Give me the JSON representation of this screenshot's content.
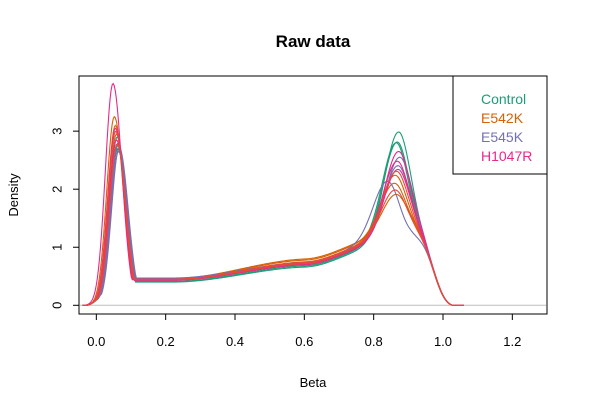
{
  "chart_data": {
    "type": "line",
    "title": "Raw data",
    "xlabel": "Beta",
    "ylabel": "Density",
    "xlim": [
      -0.05,
      1.3
    ],
    "ylim": [
      -0.15,
      3.95
    ],
    "x_ticks": [
      0.0,
      0.2,
      0.4,
      0.6,
      0.8,
      1.0,
      1.2
    ],
    "x_tick_labels": [
      "0.0",
      "0.2",
      "0.4",
      "0.6",
      "0.8",
      "1.0",
      "1.2"
    ],
    "y_ticks": [
      0,
      1,
      2,
      3
    ],
    "y_tick_labels": [
      "0",
      "1",
      "2",
      "3"
    ],
    "baseline": {
      "y": 0,
      "color": "#bebebe"
    },
    "legend": {
      "position": "top-right",
      "entries": [
        {
          "label": "Control",
          "color": "#1b9e77"
        },
        {
          "label": "E542K",
          "color": "#d95f02"
        },
        {
          "label": "E545K",
          "color": "#7570b3"
        },
        {
          "label": "H1047R",
          "color": "#e7298a"
        }
      ]
    },
    "series": [
      {
        "color": "#1b9e77",
        "peak1_x": 0.062,
        "peak1_y": 2.7,
        "trough_y": 0.4,
        "mid_y": 0.66,
        "peak2_x": 0.872,
        "peak2_y": 2.58
      },
      {
        "color": "#1b9e77",
        "peak1_x": 0.062,
        "peak1_y": 2.75,
        "trough_y": 0.41,
        "mid_y": 0.68,
        "peak2_x": 0.868,
        "peak2_y": 2.4
      },
      {
        "color": "#1b9e77",
        "peak1_x": 0.06,
        "peak1_y": 2.9,
        "trough_y": 0.43,
        "mid_y": 0.7,
        "peak2_x": 0.865,
        "peak2_y": 2.38
      },
      {
        "color": "#d95f02",
        "peak1_x": 0.052,
        "peak1_y": 3.25,
        "trough_y": 0.46,
        "mid_y": 0.8,
        "peak2_x": 0.865,
        "peak2_y": 1.45
      },
      {
        "color": "#d95f02",
        "peak1_x": 0.055,
        "peak1_y": 3.1,
        "trough_y": 0.45,
        "mid_y": 0.78,
        "peak2_x": 0.86,
        "peak2_y": 1.65
      },
      {
        "color": "#d95f02",
        "peak1_x": 0.058,
        "peak1_y": 2.95,
        "trough_y": 0.44,
        "mid_y": 0.75,
        "peak2_x": 0.862,
        "peak2_y": 1.8
      },
      {
        "color": "#7570b3",
        "peak1_x": 0.064,
        "peak1_y": 2.65,
        "trough_y": 0.47,
        "mid_y": 0.74,
        "peak2_x": 0.84,
        "peak2_y": 1.7
      },
      {
        "color": "#7570b3",
        "peak1_x": 0.066,
        "peak1_y": 2.72,
        "trough_y": 0.46,
        "mid_y": 0.72,
        "peak2_x": 0.875,
        "peak2_y": 2.12
      },
      {
        "color": "#7570b3",
        "peak1_x": 0.063,
        "peak1_y": 2.8,
        "trough_y": 0.45,
        "mid_y": 0.71,
        "peak2_x": 0.87,
        "peak2_y": 1.98
      },
      {
        "color": "#e7298a",
        "peak1_x": 0.048,
        "peak1_y": 3.82,
        "trough_y": 0.44,
        "mid_y": 0.72,
        "peak2_x": 0.872,
        "peak2_y": 2.22
      },
      {
        "color": "#e7298a",
        "peak1_x": 0.055,
        "peak1_y": 3.05,
        "trough_y": 0.45,
        "mid_y": 0.73,
        "peak2_x": 0.868,
        "peak2_y": 2.05
      },
      {
        "color": "#e7298a",
        "peak1_x": 0.058,
        "peak1_y": 2.85,
        "trough_y": 0.43,
        "mid_y": 0.7,
        "peak2_x": 0.87,
        "peak2_y": 1.92
      },
      {
        "color": "#e64a3c",
        "peak1_x": 0.056,
        "peak1_y": 3.0,
        "trough_y": 0.45,
        "mid_y": 0.74,
        "peak2_x": 0.862,
        "peak2_y": 1.55
      },
      {
        "color": "#e64a3c",
        "peak1_x": 0.06,
        "peak1_y": 2.78,
        "trough_y": 0.44,
        "mid_y": 0.72,
        "peak2_x": 0.866,
        "peak2_y": 1.88
      }
    ]
  }
}
